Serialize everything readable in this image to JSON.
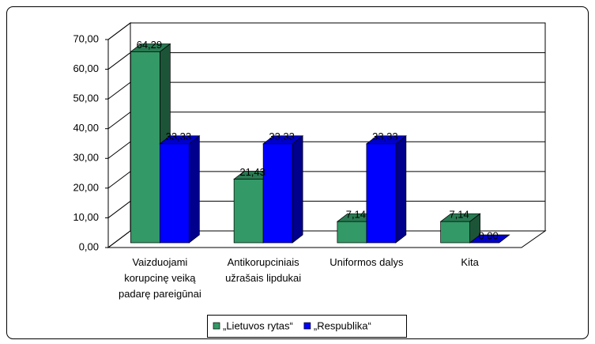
{
  "chart_data": {
    "type": "bar3d",
    "categories": [
      "Vaizduojami korupcinę veiką padarę pareigūnai",
      "Antikorupciniais užrašais lipdukai",
      "Uniformos dalys",
      "Kita"
    ],
    "series": [
      {
        "name": "„Lietuvos rytas“",
        "color": "#339966",
        "values": [
          64.29,
          21.43,
          7.14,
          7.14
        ],
        "value_labels": [
          "64,29",
          "21,43",
          "7,14",
          "7,14"
        ]
      },
      {
        "name": "„Respublika“",
        "color": "#0000ff",
        "values": [
          33.33,
          33.33,
          33.33,
          0.0
        ],
        "value_labels": [
          "33,33",
          "33,33",
          "33,33",
          "0,00"
        ]
      }
    ],
    "ylim": [
      0,
      70
    ],
    "yticks": [
      {
        "value": 0,
        "label": "0,00"
      },
      {
        "value": 10,
        "label": "10,00"
      },
      {
        "value": 20,
        "label": "20,00"
      },
      {
        "value": 30,
        "label": "30,00"
      },
      {
        "value": 40,
        "label": "40,00"
      },
      {
        "value": 50,
        "label": "50,00"
      },
      {
        "value": 60,
        "label": "60,00"
      },
      {
        "value": 70,
        "label": "70,00"
      }
    ],
    "grid": true,
    "legend": "bottom"
  }
}
